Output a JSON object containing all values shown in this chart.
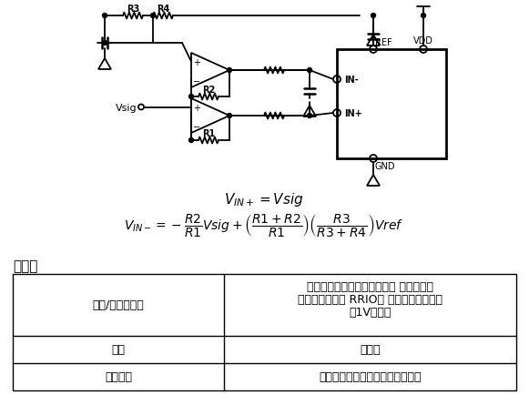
{
  "bg_color": "#ffffff",
  "section_title": "利与弊",
  "table_rows": [
    [
      "裕量/单电源供电",
      "受输入和输出裕量要求限制。 单电源供电\n时，第一级需要 RRIO。 输入裕量要求通常\n为1V左右。"
    ],
    [
      "增益",
      "不适用"
    ],
    [
      "输入阻抗",
      "高阻抗受放大器的输入漏电流限制"
    ]
  ],
  "col_split": 0.42,
  "font_size_table": 9,
  "font_size_section": 11
}
